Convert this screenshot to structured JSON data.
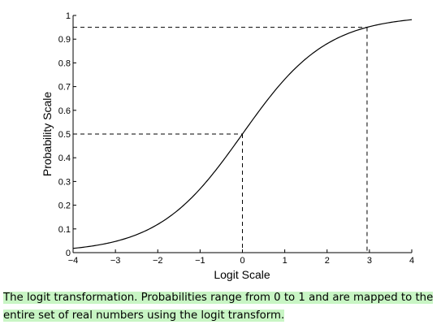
{
  "chart_data": {
    "type": "line",
    "xlabel": "Logit Scale",
    "ylabel": "Probability Scale",
    "xlim": [
      -4,
      4
    ],
    "ylim": [
      0,
      1
    ],
    "x_ticks": [
      -4,
      -3,
      -2,
      -1,
      0,
      1,
      2,
      3,
      4
    ],
    "x_tick_labels": [
      "−4",
      "−3",
      "−2",
      "−1",
      "0",
      "1",
      "2",
      "3",
      "4"
    ],
    "y_ticks": [
      0,
      0.1,
      0.2,
      0.3,
      0.4,
      0.5,
      0.6,
      0.7,
      0.8,
      0.9,
      1
    ],
    "y_tick_labels": [
      "0",
      "0.1",
      "0.2",
      "0.3",
      "0.4",
      "0.5",
      "0.6",
      "0.7",
      "0.8",
      "0.9",
      "1"
    ],
    "grid": false,
    "curve": {
      "function": "logistic",
      "x": [
        -4,
        -3.5,
        -3,
        -2.5,
        -2,
        -1.5,
        -1,
        -0.5,
        0,
        0.5,
        1,
        1.5,
        2,
        2.5,
        3,
        3.5,
        4
      ],
      "y": [
        0.018,
        0.029,
        0.047,
        0.076,
        0.119,
        0.182,
        0.269,
        0.378,
        0.5,
        0.622,
        0.731,
        0.818,
        0.881,
        0.924,
        0.953,
        0.971,
        0.982
      ]
    },
    "reference_lines": [
      {
        "x": 0,
        "y": 0.5,
        "style": "dashed"
      },
      {
        "x": 2.944,
        "y": 0.95,
        "style": "dashed"
      }
    ]
  },
  "caption": {
    "line1": "The logit transformation. Probabilities range from 0 to 1 and are mapped to the",
    "line2": "entire set of real numbers using the logit transform."
  }
}
